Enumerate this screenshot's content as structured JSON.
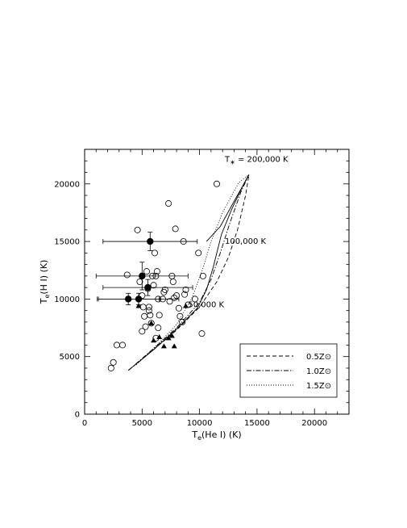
{
  "chart_data": {
    "type": "scatter",
    "xlabel": "T_e(He I) (K)",
    "ylabel": "T_e(H I) (K)",
    "xlim": [
      0,
      23000
    ],
    "ylim": [
      0,
      23000
    ],
    "x_ticks": [
      0,
      5000,
      10000,
      15000,
      20000
    ],
    "y_ticks": [
      0,
      5000,
      10000,
      15000,
      20000
    ],
    "grid": false,
    "legend_position": "bottom-right",
    "legend": [
      {
        "label": "0.5Z⊙",
        "style": "dashed"
      },
      {
        "label": "1.0Z⊙",
        "style": "dashdot"
      },
      {
        "label": "1.5Z⊙",
        "style": "dotted"
      }
    ],
    "annotations": [
      {
        "text": "T∗ = 200,000 K",
        "x": 12200,
        "y": 21900
      },
      {
        "text": "100,000 K",
        "x": 12200,
        "y": 14800
      },
      {
        "text": "50,000 K",
        "x": 9000,
        "y": 9300
      }
    ],
    "series": [
      {
        "marker": "open-circle",
        "points": [
          [
            2300,
            4000
          ],
          [
            2500,
            4500
          ],
          [
            2800,
            6000
          ],
          [
            3300,
            6000
          ],
          [
            3700,
            12100
          ],
          [
            4600,
            16000
          ],
          [
            4800,
            11500
          ],
          [
            5000,
            10300
          ],
          [
            5100,
            9300
          ],
          [
            5200,
            8500
          ],
          [
            5300,
            7600
          ],
          [
            5000,
            7200
          ],
          [
            5400,
            12400
          ],
          [
            5500,
            10900
          ],
          [
            5600,
            9300
          ],
          [
            5700,
            8600
          ],
          [
            5800,
            7900
          ],
          [
            5600,
            9000
          ],
          [
            5900,
            12000
          ],
          [
            6000,
            11200
          ],
          [
            6100,
            14000
          ],
          [
            6200,
            12000
          ],
          [
            6300,
            12400
          ],
          [
            6400,
            10000
          ],
          [
            6400,
            7500
          ],
          [
            6500,
            8600
          ],
          [
            6200,
            6600
          ],
          [
            6800,
            10000
          ],
          [
            6900,
            10600
          ],
          [
            7000,
            10800
          ],
          [
            7300,
            18300
          ],
          [
            7400,
            9800
          ],
          [
            7600,
            12000
          ],
          [
            7700,
            11500
          ],
          [
            7800,
            10100
          ],
          [
            7900,
            16100
          ],
          [
            8000,
            10300
          ],
          [
            8200,
            9200
          ],
          [
            8300,
            8500
          ],
          [
            8500,
            8000
          ],
          [
            8600,
            15000
          ],
          [
            8700,
            10400
          ],
          [
            8800,
            10800
          ],
          [
            9000,
            9500
          ],
          [
            9600,
            10000
          ],
          [
            9900,
            14000
          ],
          [
            10200,
            7000
          ],
          [
            10300,
            12000
          ],
          [
            11500,
            20000
          ]
        ]
      },
      {
        "marker": "filled-circle",
        "points": [
          {
            "x": 5700,
            "y": 15000,
            "xerr": 4100,
            "yerr": 800
          },
          {
            "x": 5000,
            "y": 12000,
            "xerr": 4000,
            "yerr": 1200
          },
          {
            "x": 5500,
            "y": 11000,
            "xerr": 3900,
            "yerr": 700
          },
          {
            "x": 3800,
            "y": 10000,
            "xerr": 2700,
            "yerr": 500
          },
          {
            "x": 4700,
            "y": 10000,
            "xerr": 3500,
            "yerr": 500
          }
        ]
      },
      {
        "marker": "filled-triangle",
        "points": [
          [
            4700,
            9400
          ],
          [
            5800,
            7900
          ],
          [
            6000,
            6400
          ],
          [
            6500,
            6700
          ],
          [
            6900,
            5900
          ],
          [
            7300,
            6600
          ],
          [
            7600,
            6800
          ],
          [
            7800,
            5900
          ],
          [
            8800,
            9400
          ]
        ]
      }
    ],
    "model_curves": [
      {
        "name": "0.5Z⊙",
        "style": "dashed",
        "points": [
          [
            3800,
            3800
          ],
          [
            6000,
            5600
          ],
          [
            8000,
            7300
          ],
          [
            10000,
            9300
          ],
          [
            11500,
            11500
          ],
          [
            12500,
            13600
          ],
          [
            13300,
            16000
          ],
          [
            14000,
            19000
          ],
          [
            14300,
            20800
          ]
        ]
      },
      {
        "name": "1.0Z⊙",
        "style": "dashdot",
        "points": [
          [
            3800,
            3800
          ],
          [
            6000,
            5700
          ],
          [
            8000,
            7500
          ],
          [
            10000,
            9700
          ],
          [
            11000,
            11700
          ],
          [
            11800,
            14000
          ],
          [
            12600,
            16500
          ],
          [
            13600,
            19300
          ],
          [
            14300,
            20800
          ]
        ]
      },
      {
        "name": "1.5Z⊙",
        "style": "dotted",
        "points": [
          [
            4500,
            4300
          ],
          [
            6500,
            6200
          ],
          [
            8000,
            7800
          ],
          [
            9300,
            10000
          ],
          [
            10200,
            12400
          ],
          [
            11000,
            15000
          ],
          [
            12000,
            17500
          ],
          [
            13400,
            20100
          ],
          [
            14300,
            20800
          ]
        ]
      },
      {
        "name": "",
        "style": "solid",
        "points": [
          [
            3800,
            3800
          ],
          [
            6000,
            5600
          ],
          [
            8000,
            7400
          ],
          [
            9800,
            9200
          ],
          [
            10600,
            10800
          ],
          [
            11200,
            12800
          ],
          [
            11900,
            15600
          ],
          [
            12800,
            17800
          ],
          [
            13800,
            19900
          ],
          [
            14300,
            20800
          ]
        ]
      },
      {
        "name": "",
        "style": "solid",
        "points": [
          [
            10600,
            15000
          ],
          [
            11800,
            16300
          ],
          [
            12900,
            18300
          ],
          [
            13800,
            19900
          ],
          [
            14300,
            20800
          ]
        ]
      }
    ]
  }
}
